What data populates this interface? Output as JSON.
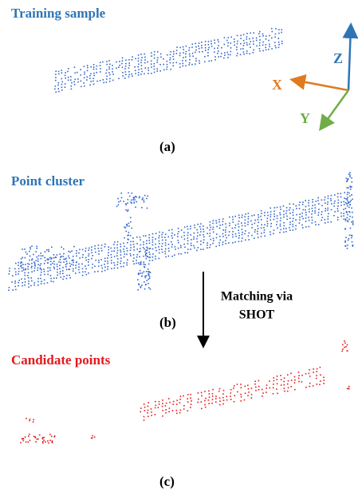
{
  "panels": [
    {
      "title": "Training sample",
      "caption": "(a)"
    },
    {
      "title": "Point cluster",
      "caption": "(b)"
    },
    {
      "title": "Candidate points",
      "caption": "(c)"
    }
  ],
  "axes": {
    "z": "Z",
    "x": "X",
    "y": "Y"
  },
  "arrow_label": [
    "Matching via",
    "SHOT"
  ]
}
